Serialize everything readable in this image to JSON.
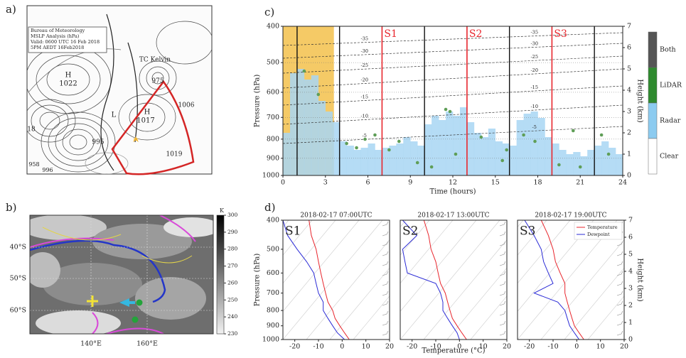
{
  "panels": [
    "a)",
    "b)",
    "c)",
    "d)"
  ],
  "map_a": {
    "texts": [
      "Bureau of Meteorology",
      "MSLP Analysis (hPa)",
      "Valid: 0600 UTC 16 Feb 2018",
      "5PM AEDT 16Feb2018",
      "H",
      "1022",
      "TC Kelvin",
      "975",
      "1006",
      "H",
      "1017",
      "L",
      "995",
      "1019",
      "18",
      "958",
      "996"
    ]
  },
  "map_b": {
    "lat_labels": [
      "40°S",
      "50°S",
      "60°S"
    ],
    "lon_labels": [
      "140°E",
      "160°E"
    ]
  },
  "chart_data": [
    {
      "type": "timeheight",
      "xlabel": "Time (hours)",
      "ylabel": "Pressure (hPa)",
      "y2label": "Height (km)",
      "xlim": [
        0,
        24
      ],
      "xticks": [
        0,
        3,
        6,
        9,
        12,
        15,
        18,
        21,
        24
      ],
      "ylim": [
        1000,
        400
      ],
      "yticks": [
        1000,
        900,
        800,
        700,
        600,
        500,
        400
      ],
      "log_y": true,
      "grid": true,
      "y2lim": [
        0,
        7
      ],
      "y2ticks": [
        0,
        1,
        2,
        3,
        4,
        5,
        6,
        7
      ],
      "highlight": [
        0,
        3.6
      ],
      "highlight_color": "#f3c14b",
      "launches": [
        1,
        4,
        10,
        16,
        22
      ],
      "soundings": [
        {
          "name": "S1",
          "x": 7
        },
        {
          "name": "S2",
          "x": 13
        },
        {
          "name": "S3",
          "x": 19
        }
      ],
      "sounding_color": "#e8262d",
      "radar": {
        "color": "#a8d6f3",
        "axis": "y2",
        "x": [
          0,
          0.5,
          1,
          1.5,
          2,
          2.5,
          3,
          3.5,
          4,
          4.5,
          5,
          5.5,
          6,
          6.5,
          7,
          7.5,
          8,
          8.5,
          9,
          9.5,
          10,
          10.5,
          11,
          11.5,
          12,
          12.5,
          13,
          13.5,
          14,
          14.5,
          15,
          15.5,
          16,
          16.5,
          17,
          17.5,
          18,
          18.5,
          19,
          19.5,
          20,
          20.5,
          21,
          21.5,
          22,
          22.5,
          23,
          23.5
        ],
        "values": [
          2.0,
          4.8,
          5.0,
          4.5,
          4.7,
          3.5,
          3.0,
          2.5,
          1.6,
          1.4,
          1.2,
          1.3,
          1.5,
          1.2,
          1.3,
          1.4,
          1.5,
          1.8,
          1.6,
          1.4,
          2.4,
          2.8,
          2.6,
          3.0,
          2.8,
          3.2,
          2.5,
          2.0,
          1.8,
          2.2,
          1.6,
          1.5,
          1.4,
          2.6,
          2.9,
          3.0,
          2.7,
          1.8,
          1.5,
          1.2,
          1.0,
          1.1,
          0.9,
          1.2,
          1.4,
          1.6,
          1.3,
          1.0
        ]
      },
      "lidar": {
        "color": "#5f9e57",
        "axis": "y2",
        "x": [
          4.5,
          5.2,
          5.8,
          6.5,
          7.5,
          8.2,
          9.5,
          10.5,
          11.5,
          12.2,
          14,
          15.5,
          17,
          17.8,
          19.5,
          20.5,
          21,
          22.5,
          23,
          1.5,
          2.5,
          11.8,
          15.8
        ],
        "values": [
          1.5,
          1.3,
          1.7,
          1.9,
          1.2,
          1.6,
          0.6,
          0.4,
          3.1,
          1.0,
          1.8,
          0.7,
          1.9,
          1.6,
          0.5,
          2.1,
          0.4,
          1.9,
          1.0,
          4.9,
          3.8,
          3.0,
          1.2
        ]
      },
      "isotherms": {
        "x": [
          0,
          24
        ],
        "lines": [
          {
            "value": -35,
            "values": [
              6.1,
              6.7
            ]
          },
          {
            "value": -30,
            "values": [
              5.5,
              6.2
            ]
          },
          {
            "value": -25,
            "values": [
              4.8,
              5.6
            ]
          },
          {
            "value": -20,
            "values": [
              4.1,
              5.0
            ]
          },
          {
            "value": -15,
            "values": [
              3.3,
              4.2
            ]
          },
          {
            "value": -10,
            "values": [
              2.4,
              3.3
            ]
          },
          {
            "value": -5,
            "values": [
              1.5,
              2.3
            ]
          }
        ]
      },
      "legend": [
        {
          "name": "Both",
          "color": "#555555"
        },
        {
          "name": "LiDAR",
          "color": "#2f8a2f"
        },
        {
          "name": "Radar",
          "color": "#8ccbf0"
        },
        {
          "name": "Clear",
          "color": "#ffffff"
        }
      ]
    },
    {
      "type": "sounding",
      "title": "2018-02-17 07:00UTC",
      "label": "S1",
      "ylabel": "Pressure (hPa)",
      "xlim": [
        -25,
        20
      ],
      "xticks": [
        -20,
        -10,
        0,
        10,
        20
      ],
      "ylim": [
        1000,
        400
      ],
      "yticks": [
        1000,
        900,
        800,
        700,
        600,
        500,
        400
      ],
      "log_y": true,
      "pressure": [
        1000,
        950,
        900,
        850,
        800,
        750,
        700,
        650,
        600,
        550,
        500,
        450,
        400
      ],
      "series": [
        {
          "color": "#e8262d",
          "values": [
            3,
            1,
            -1,
            -3,
            -4,
            -6,
            -7,
            -8,
            -9,
            -10,
            -11,
            -13,
            -14
          ]
        },
        {
          "color": "#2b2bd6",
          "values": [
            1,
            -2,
            -4,
            -6,
            -8,
            -8,
            -10,
            -11,
            -12,
            -15,
            -19,
            -23,
            -25
          ]
        }
      ]
    },
    {
      "type": "sounding",
      "title": "2018-02-17 13:00UTC",
      "label": "S2",
      "xlabel": "Temperature (°C)",
      "xlim": [
        -25,
        20
      ],
      "xticks": [
        -20,
        -10,
        0,
        10,
        20
      ],
      "ylim": [
        1000,
        400
      ],
      "log_y": true,
      "pressure": [
        1000,
        950,
        900,
        850,
        800,
        750,
        700,
        650,
        600,
        550,
        500,
        450,
        400
      ],
      "series": [
        {
          "color": "#e8262d",
          "values": [
            3,
            1,
            -1,
            -3,
            -4,
            -5,
            -6,
            -8,
            -9,
            -10,
            -12,
            -13,
            -15
          ]
        },
        {
          "color": "#2b2bd6",
          "values": [
            0,
            -1,
            -3,
            -5,
            -7,
            -7,
            -8,
            -10,
            -22,
            -23,
            -24,
            -18,
            -24
          ]
        }
      ]
    },
    {
      "type": "sounding",
      "title": "2018-02-17 19:00UTC",
      "label": "S3",
      "y2label": "Height (km)",
      "legend": true,
      "xlim": [
        -25,
        20
      ],
      "xticks": [
        -20,
        -10,
        0,
        10,
        20
      ],
      "ylim": [
        1000,
        400
      ],
      "log_y": true,
      "y2lim": [
        0,
        7
      ],
      "y2ticks": [
        0,
        1,
        2,
        3,
        4,
        5,
        6,
        7
      ],
      "pressure": [
        1000,
        950,
        900,
        850,
        800,
        750,
        700,
        650,
        600,
        550,
        500,
        450,
        400
      ],
      "series": [
        {
          "name": "Temperature",
          "color": "#e8262d",
          "values": [
            3,
            1,
            -1,
            -2,
            -3,
            -4,
            -5,
            -5,
            -7,
            -9,
            -10,
            -12,
            -15
          ]
        },
        {
          "name": "Dewpoint",
          "color": "#2b2bd6",
          "values": [
            1,
            -1,
            -3,
            -4,
            -5,
            -8,
            -18,
            -10,
            -12,
            -14,
            -15,
            -18,
            -22
          ]
        }
      ]
    },
    {
      "type": "colorbar",
      "label": "K",
      "ylim": [
        230,
        300
      ],
      "yticks": [
        230,
        240,
        250,
        260,
        270,
        280,
        290,
        300
      ],
      "colors": [
        "#f2f2f2",
        "#000000"
      ]
    }
  ]
}
